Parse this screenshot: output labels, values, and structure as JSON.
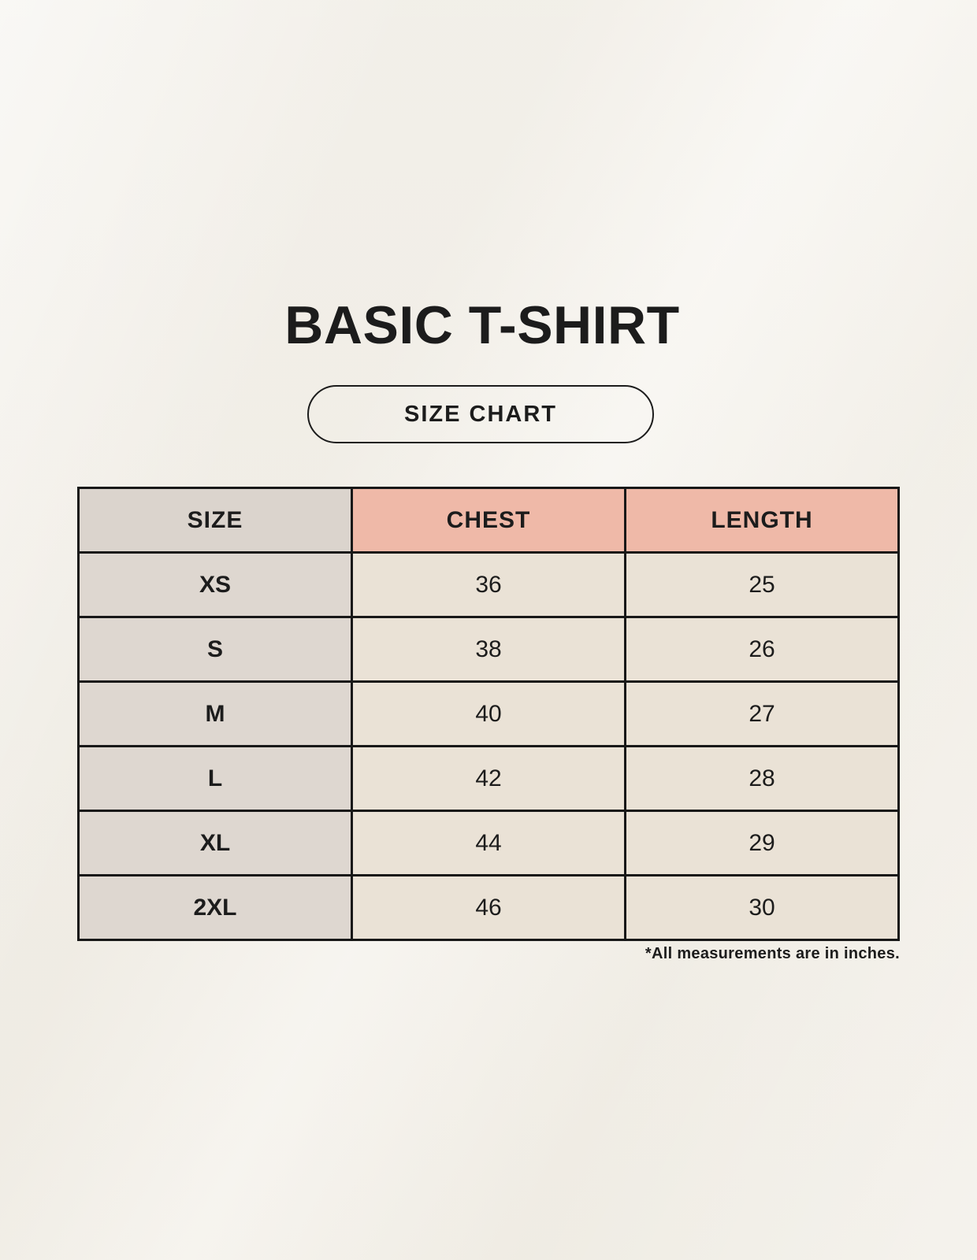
{
  "header": {
    "title": "BASIC T-SHIRT",
    "badge_label": "SIZE CHART"
  },
  "chart_data": {
    "type": "table",
    "title": "BASIC T-SHIRT",
    "columns": [
      "SIZE",
      "CHEST",
      "LENGTH"
    ],
    "rows": [
      [
        "XS",
        "36",
        "25"
      ],
      [
        "S",
        "38",
        "26"
      ],
      [
        "M",
        "40",
        "27"
      ],
      [
        "L",
        "42",
        "28"
      ],
      [
        "XL",
        "44",
        "29"
      ],
      [
        "2XL",
        "46",
        "30"
      ]
    ],
    "units_note": "*All measurements are in inches."
  },
  "colors": {
    "background": "#f4f1ea",
    "text": "#1c1c1c",
    "table_border": "#181818",
    "header_size_bg": "#dbd4cd",
    "header_accent_bg": "#efb9a8",
    "row_label_bg": "#ded7d0",
    "row_value_bg": "#eae2d6"
  }
}
